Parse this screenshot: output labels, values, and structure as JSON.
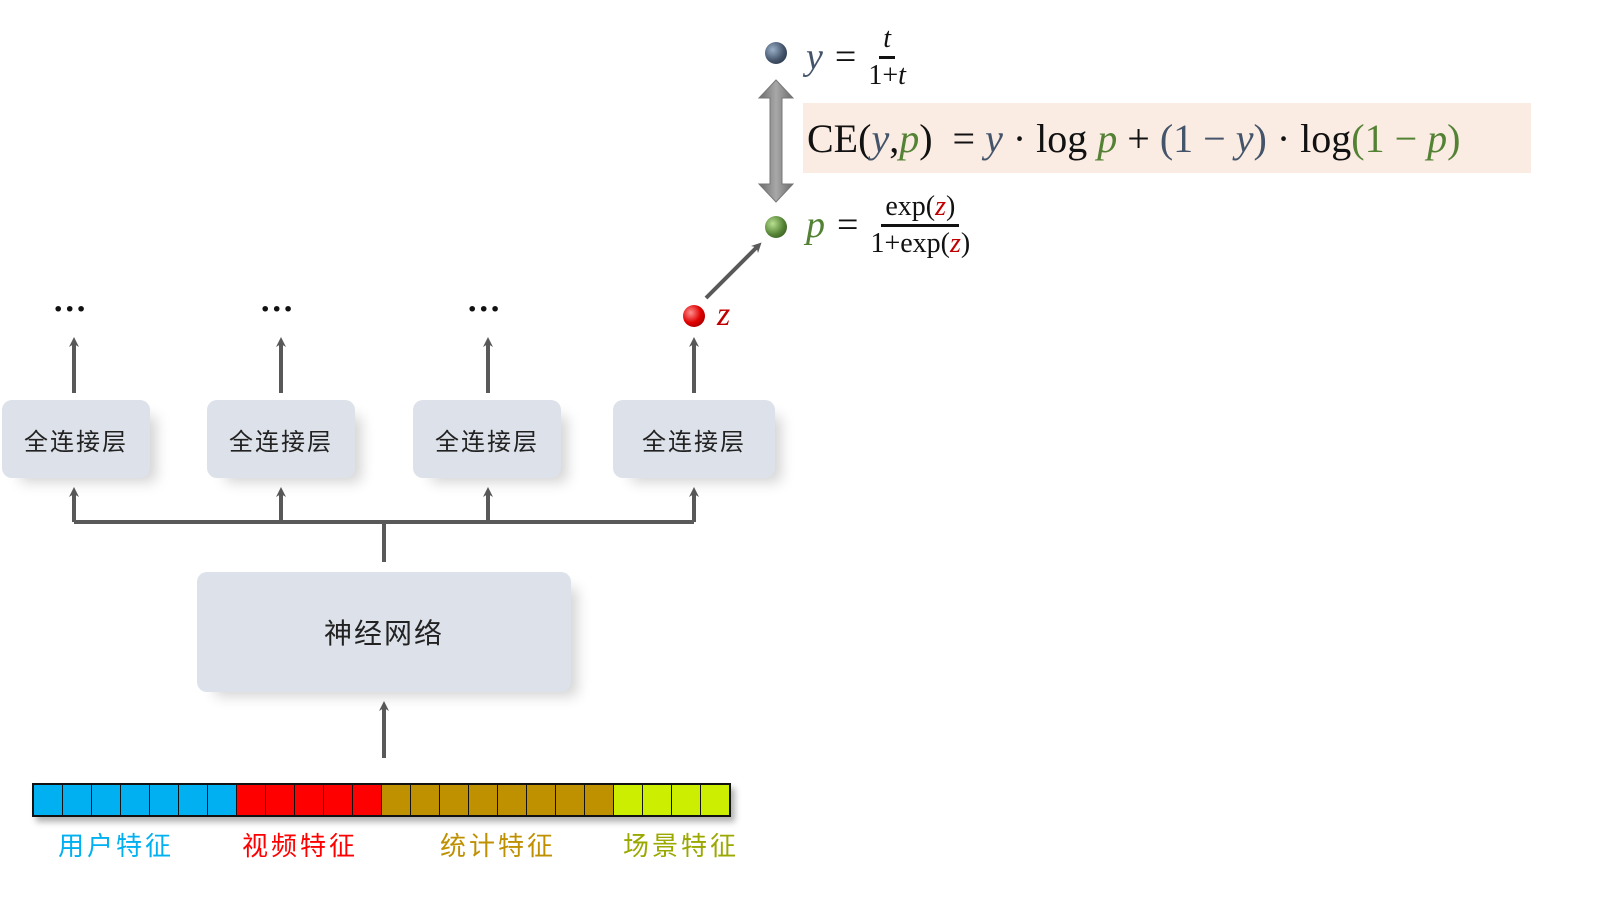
{
  "colors": {
    "blue": "#00b0f0",
    "red": "#ff0000",
    "brown": "#bf9000",
    "lime": "#ccee00",
    "lime_label": "#9aa800",
    "y_color": "#44546a",
    "p_color": "#548235",
    "z_color": "#c00000",
    "formula_bg": "#fbece3",
    "box_bg": "#dde1e9"
  },
  "layers": {
    "fc_boxes": [
      {
        "label": "全连接层"
      },
      {
        "label": "全连接层"
      },
      {
        "label": "全连接层"
      },
      {
        "label": "全连接层"
      }
    ],
    "ellipsis": "···",
    "network": "神经网络"
  },
  "features": [
    {
      "label": "用户特征",
      "count": 7,
      "color": "#00b0f0",
      "label_color": "#00b0f0"
    },
    {
      "label": "视频特征",
      "count": 5,
      "color": "#ff0000",
      "label_color": "#ff0000"
    },
    {
      "label": "统计特征",
      "count": 8,
      "color": "#bf9000",
      "label_color": "#bf9000"
    },
    {
      "label": "场景特征",
      "count": 4,
      "color": "#ccee00",
      "label_color": "#9aa800"
    }
  ],
  "formulas": {
    "z_label": "z",
    "y_def": {
      "lhs": "y",
      "eq": "=",
      "num": "t",
      "den_a": "1+",
      "den_b": "t"
    },
    "p_def": {
      "lhs": "p",
      "eq": "=",
      "num_a": "exp(",
      "num_z": "z",
      "num_b": ")",
      "den_a": "1+exp(",
      "den_z": "z",
      "den_b": ")"
    },
    "ce": {
      "a": "CE(",
      "y1": "y",
      ",": ",",
      "p1": "p",
      "b": ")  = ",
      "y2": "y",
      "c": " · log ",
      "p2": "p",
      "d": " + ",
      "e": "(1 − ",
      "y3": "y",
      "f": ")",
      "g": " · log",
      "h": "(1 − ",
      "p3": "p",
      "i": ")"
    }
  }
}
